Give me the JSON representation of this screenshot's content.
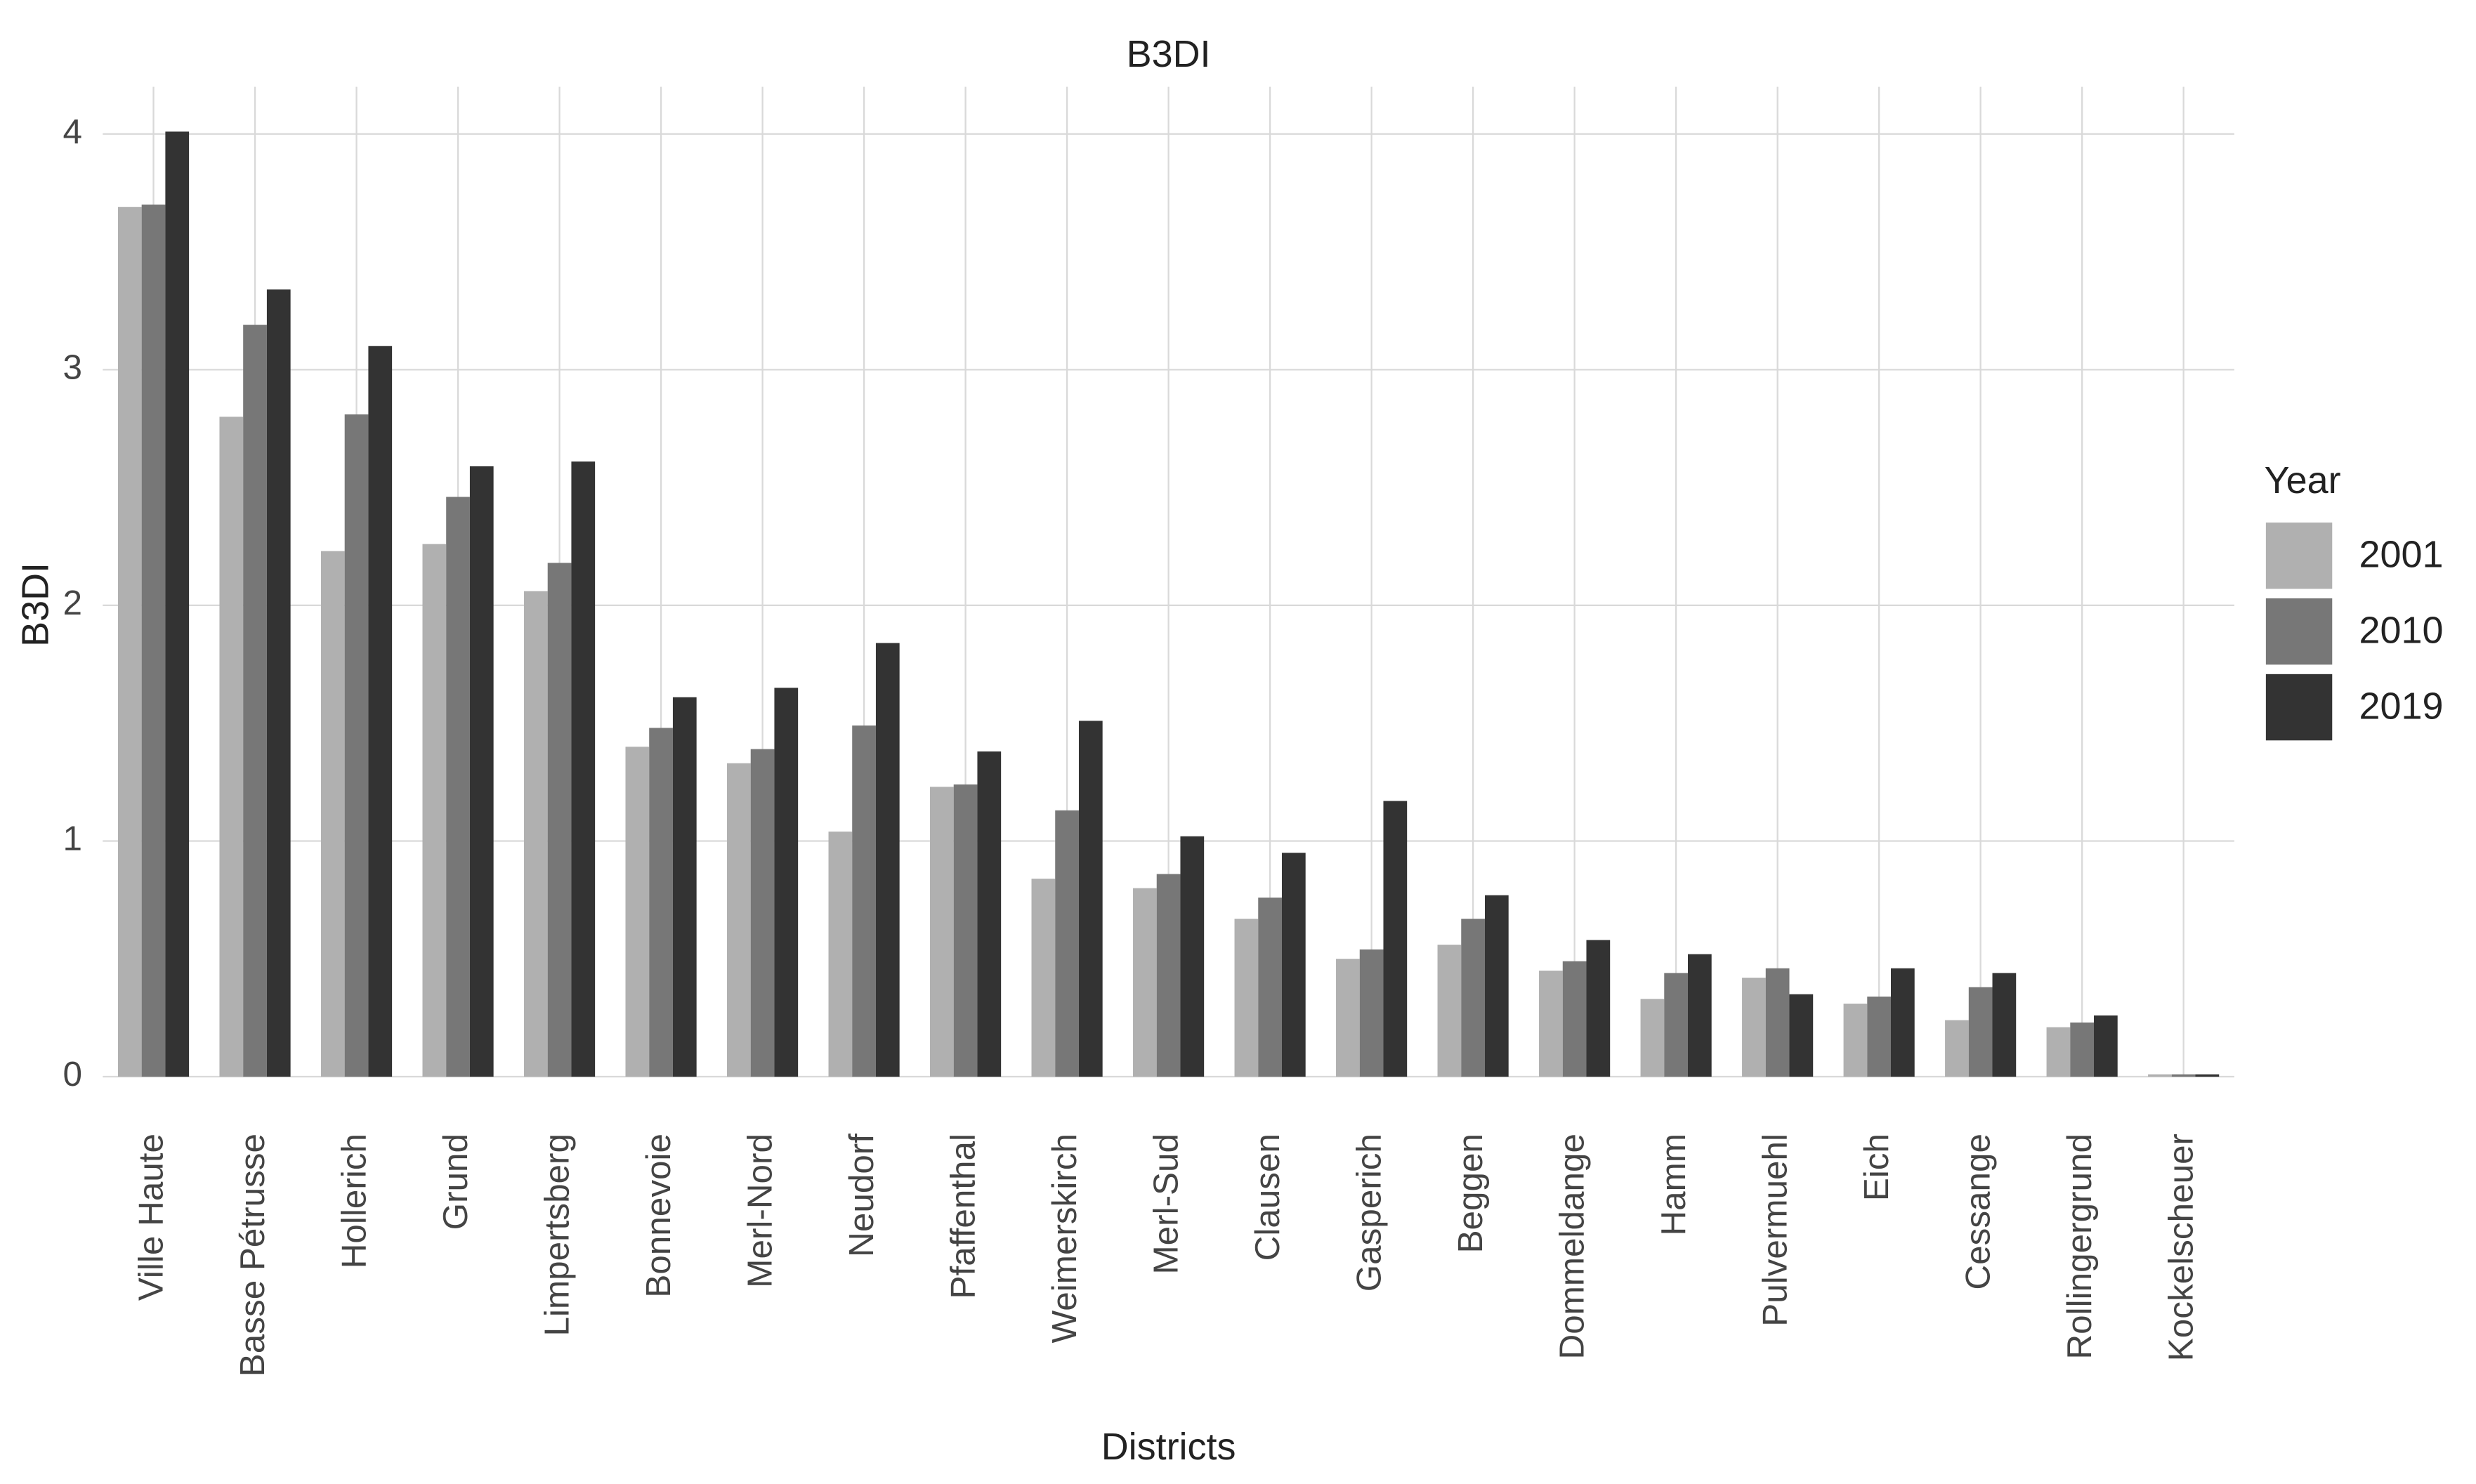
{
  "chart_data": {
    "type": "bar",
    "title": "B3DI",
    "x_label": "Districts",
    "y_label": "B3DI",
    "legend_title": "Year",
    "categories": [
      "Ville Haute",
      "Basse Pétrusse",
      "Hollerich",
      "Grund",
      "Limpertsberg",
      "Bonnevoie",
      "Merl-Nord",
      "Neudorf",
      "Pfaffenthal",
      "Weimerskirch",
      "Merl-Sud",
      "Clausen",
      "Gasperich",
      "Beggen",
      "Dommeldange",
      "Hamm",
      "Pulvermuehl",
      "Eich",
      "Cessange",
      "Rollingergrund",
      "Kockelscheuer"
    ],
    "series": [
      {
        "name": "2001",
        "color": "#b0b0b0",
        "values": [
          3.69,
          2.8,
          2.23,
          2.26,
          2.06,
          1.4,
          1.33,
          1.04,
          1.23,
          0.84,
          0.8,
          0.67,
          0.5,
          0.56,
          0.45,
          0.33,
          0.42,
          0.31,
          0.24,
          0.21,
          0.01
        ]
      },
      {
        "name": "2010",
        "color": "#777777",
        "values": [
          3.7,
          3.19,
          2.81,
          2.46,
          2.18,
          1.48,
          1.39,
          1.49,
          1.24,
          1.13,
          0.86,
          0.76,
          0.54,
          0.67,
          0.49,
          0.44,
          0.46,
          0.34,
          0.38,
          0.23,
          0.01
        ]
      },
      {
        "name": "2019",
        "color": "#333333",
        "values": [
          4.01,
          3.34,
          3.1,
          2.59,
          2.61,
          1.61,
          1.65,
          1.84,
          1.38,
          1.51,
          1.02,
          0.95,
          1.17,
          0.77,
          0.58,
          0.52,
          0.35,
          0.46,
          0.44,
          0.26,
          0.01
        ]
      }
    ],
    "ylim": [
      0,
      4.2
    ],
    "yticks": [
      0,
      1,
      2,
      3,
      4
    ],
    "grid": true,
    "legend_position": "right"
  }
}
